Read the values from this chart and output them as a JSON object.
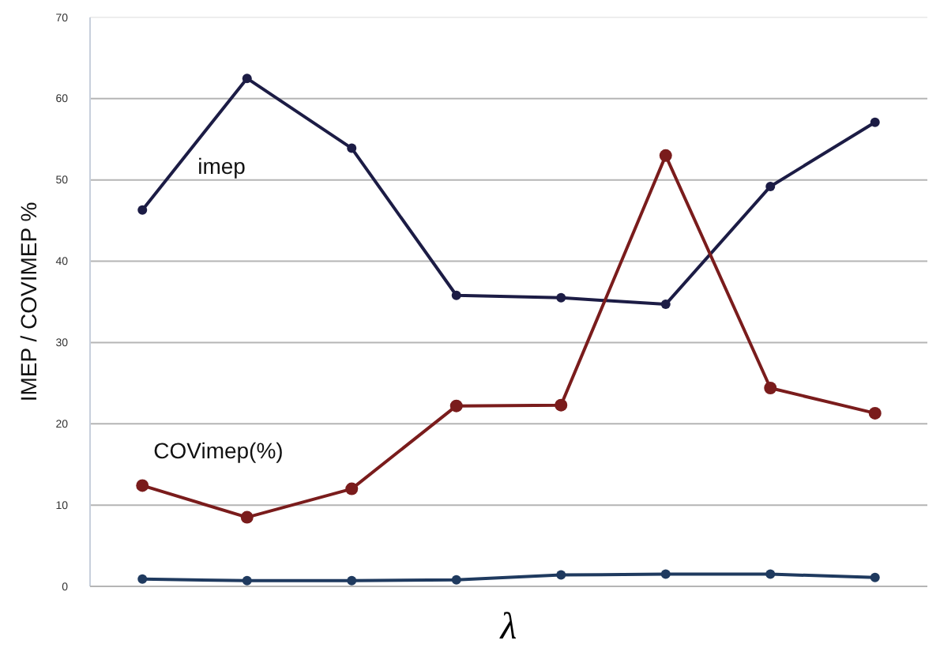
{
  "chart_data": {
    "type": "line",
    "xlabel": "λ",
    "ylabel": "IMEP / COVIMEP %",
    "categories": [
      null,
      null,
      null,
      null,
      null,
      null,
      null,
      null
    ],
    "series": [
      {
        "name": "imep",
        "color": "#1c1c45",
        "values": [
          46.3,
          62.5,
          53.9,
          35.8,
          35.5,
          34.7,
          49.2,
          57.1
        ]
      },
      {
        "name": "COVimep(%)",
        "color": "#7a1c1c",
        "values": [
          12.4,
          8.5,
          12.0,
          22.2,
          22.3,
          53.0,
          24.4,
          21.3
        ]
      },
      {
        "color": "#1f3a5f",
        "values": [
          0.9,
          0.7,
          0.7,
          0.8,
          1.4,
          1.5,
          1.5,
          1.1
        ]
      }
    ],
    "ylim": [
      0,
      70
    ],
    "yticks": [
      0,
      10,
      20,
      30,
      40,
      50,
      60,
      70
    ],
    "grid": "y",
    "marker": "circle",
    "line_style": "solid",
    "legend": false
  }
}
